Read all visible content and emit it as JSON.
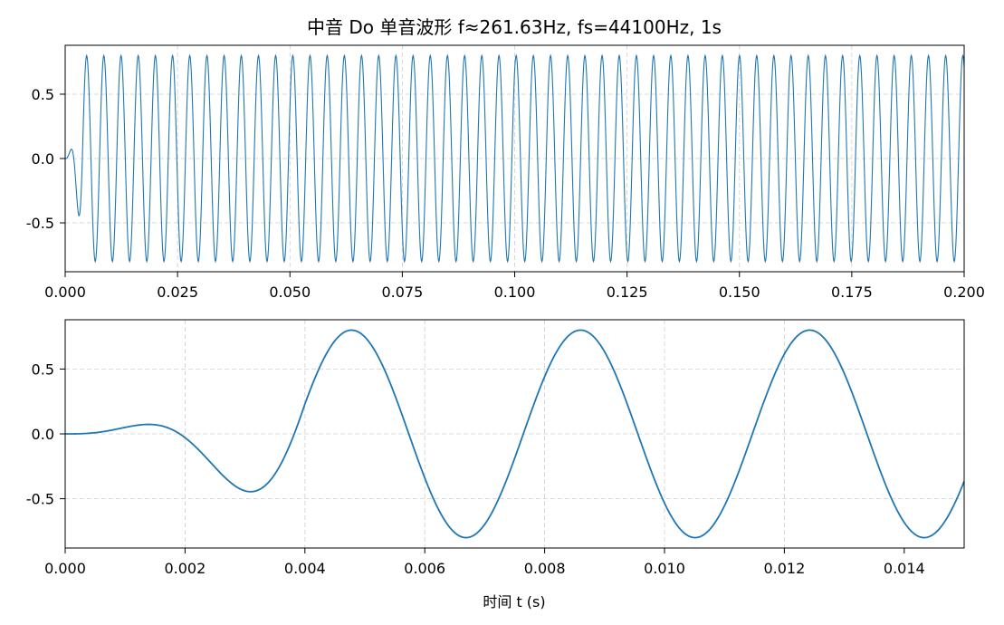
{
  "title": "中音 Do 单音波形 f≈261.63Hz, fs=44100Hz, 1s",
  "colors": {
    "line": "#1f77b4",
    "grid": "#b0b0b0",
    "axis": "#000000"
  },
  "chart_data": [
    {
      "type": "line",
      "name": "full-view",
      "frequency_hz": 261.63,
      "sample_rate_hz": 44100,
      "duration_s": 1,
      "envelope": {
        "attack_end_s": 0.004,
        "amplitude": 0.8
      },
      "xlim": [
        0,
        0.2
      ],
      "ylim": [
        -0.88,
        0.88
      ],
      "xticks": [
        0.0,
        0.025,
        0.05,
        0.075,
        0.1,
        0.125,
        0.15,
        0.175,
        0.2
      ],
      "xtick_labels": [
        "0.000",
        "0.025",
        "0.050",
        "0.075",
        "0.100",
        "0.125",
        "0.150",
        "0.175",
        "0.200"
      ],
      "yticks": [
        0.5,
        0.0,
        -0.5
      ],
      "ytick_labels": [
        "0.5",
        "0.0",
        "-0.5"
      ],
      "xlabel": "",
      "ylabel": "",
      "grid": true
    },
    {
      "type": "line",
      "name": "zoom-view",
      "frequency_hz": 261.63,
      "sample_rate_hz": 44100,
      "envelope": {
        "attack_end_s": 0.004,
        "amplitude": 0.8
      },
      "xlim": [
        0,
        0.015
      ],
      "ylim": [
        -0.88,
        0.88
      ],
      "xticks": [
        0.0,
        0.002,
        0.004,
        0.006,
        0.008,
        0.01,
        0.012,
        0.014
      ],
      "xtick_labels": [
        "0.000",
        "0.002",
        "0.004",
        "0.006",
        "0.008",
        "0.010",
        "0.012",
        "0.014"
      ],
      "yticks": [
        0.5,
        0.0,
        -0.5
      ],
      "ytick_labels": [
        "0.5",
        "0.0",
        "-0.5"
      ],
      "xlabel": "时间 t (s)",
      "ylabel": "",
      "grid": true
    }
  ]
}
